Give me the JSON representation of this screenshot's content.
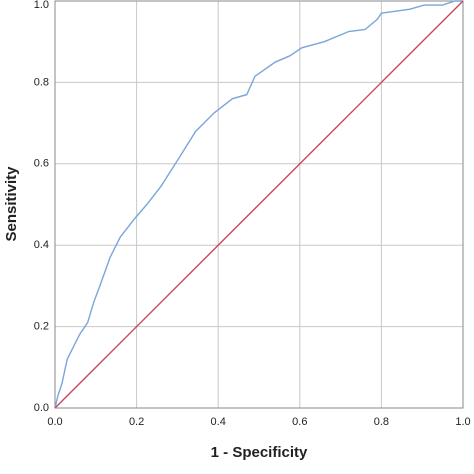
{
  "chart_data": {
    "type": "line",
    "x_label": "1 - Specificity",
    "y_label": "Sensitivity",
    "xlim": [
      0,
      1
    ],
    "ylim": [
      0,
      1
    ],
    "xticks": [
      {
        "value": 0,
        "label": "0.0"
      },
      0.2,
      0.4,
      0.6,
      0.8,
      {
        "value": 1,
        "label": "1.0"
      }
    ],
    "yticks": [
      {
        "value": 0,
        "label": "0.0"
      },
      0.2,
      0.4,
      0.6,
      0.8,
      {
        "value": 1,
        "label": "1.0"
      }
    ],
    "grid": true,
    "series": [
      {
        "color": "#7aa6d9",
        "x": [
          0,
          0.007,
          0.017,
          0.03,
          0.045,
          0.06,
          0.08,
          0.095,
          0.11,
          0.135,
          0.16,
          0.195,
          0.225,
          0.26,
          0.295,
          0.345,
          0.39,
          0.435,
          0.47,
          0.49,
          0.54,
          0.575,
          0.605,
          0.66,
          0.72,
          0.76,
          0.79,
          0.8,
          0.835,
          0.87,
          0.905,
          0.95,
          0.98,
          1
        ],
        "values": [
          0,
          0.03,
          0.06,
          0.12,
          0.15,
          0.18,
          0.21,
          0.26,
          0.3,
          0.37,
          0.42,
          0.465,
          0.5,
          0.545,
          0.6,
          0.68,
          0.725,
          0.76,
          0.77,
          0.815,
          0.85,
          0.865,
          0.885,
          0.9,
          0.925,
          0.93,
          0.955,
          0.97,
          0.975,
          0.98,
          0.99,
          0.99,
          1,
          1
        ]
      },
      {
        "color": "#c8485a",
        "x": [
          0,
          1
        ],
        "values": [
          0,
          1
        ]
      }
    ]
  }
}
